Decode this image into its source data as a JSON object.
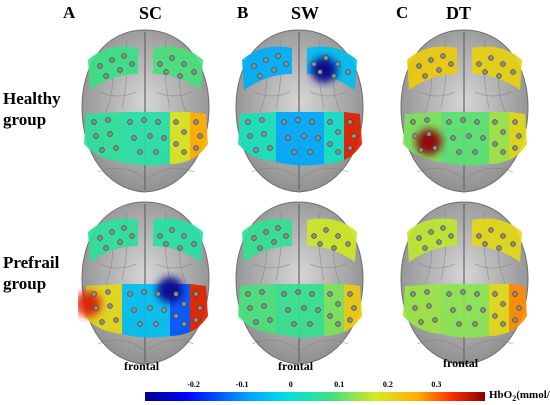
{
  "columns": [
    {
      "letter": "A",
      "condition": "SC"
    },
    {
      "letter": "B",
      "condition": "SW"
    },
    {
      "letter": "C",
      "condition": "DT"
    }
  ],
  "rows": [
    {
      "line1": "Healthy",
      "line2": "group"
    },
    {
      "line1": "Prefrail",
      "line2": "group"
    }
  ],
  "frontal_label": "frontal",
  "colorbar": {
    "ticks": [
      "-0.2",
      "-0.1",
      "0",
      "0.1",
      "0.2",
      "0.3"
    ],
    "tick_values": [
      -0.2,
      -0.1,
      0,
      0.1,
      0.2,
      0.3
    ],
    "range": [
      -0.3,
      0.4
    ],
    "title": "HbO",
    "title_sub": "2",
    "title_unit": "(mmol/L)"
  },
  "maps": [
    {
      "id": "healthy-sc",
      "regions": {
        "lf": 0.08,
        "rf": 0.09,
        "l": 0.06,
        "c": 0.05,
        "r": 0.18,
        "rr": 0.26
      }
    },
    {
      "id": "healthy-sw",
      "regions": {
        "lf": -0.07,
        "rf": -0.05,
        "l": 0.03,
        "c": -0.08,
        "r": 0.02,
        "rr": 0.35
      },
      "hotspots": [
        {
          "v": -0.3,
          "cx": 92,
          "cy": 48
        }
      ]
    },
    {
      "id": "healthy-dt",
      "regions": {
        "lf": 0.22,
        "rf": 0.21,
        "l": 0.12,
        "c": 0.1,
        "r": 0.14,
        "rr": 0.2
      },
      "hotspots": [
        {
          "v": 0.4,
          "cx": 32,
          "cy": 120
        }
      ]
    },
    {
      "id": "prefrail-sc",
      "regions": {
        "lf": 0.06,
        "rf": 0.05,
        "l": 0.2,
        "c": -0.05,
        "r": -0.15,
        "rr": 0.35
      },
      "hotspots": [
        {
          "v": -0.3,
          "cx": 92,
          "cy": 96
        },
        {
          "v": 0.35,
          "cx": 10,
          "cy": 110
        }
      ]
    },
    {
      "id": "prefrail-sw",
      "regions": {
        "lf": 0.07,
        "rf": 0.17,
        "l": 0.09,
        "c": 0.07,
        "r": 0.12,
        "rr": 0.22
      }
    },
    {
      "id": "prefrail-dt",
      "regions": {
        "lf": 0.16,
        "rf": 0.2,
        "l": 0.14,
        "c": 0.13,
        "r": 0.2,
        "rr": 0.28
      }
    }
  ]
}
